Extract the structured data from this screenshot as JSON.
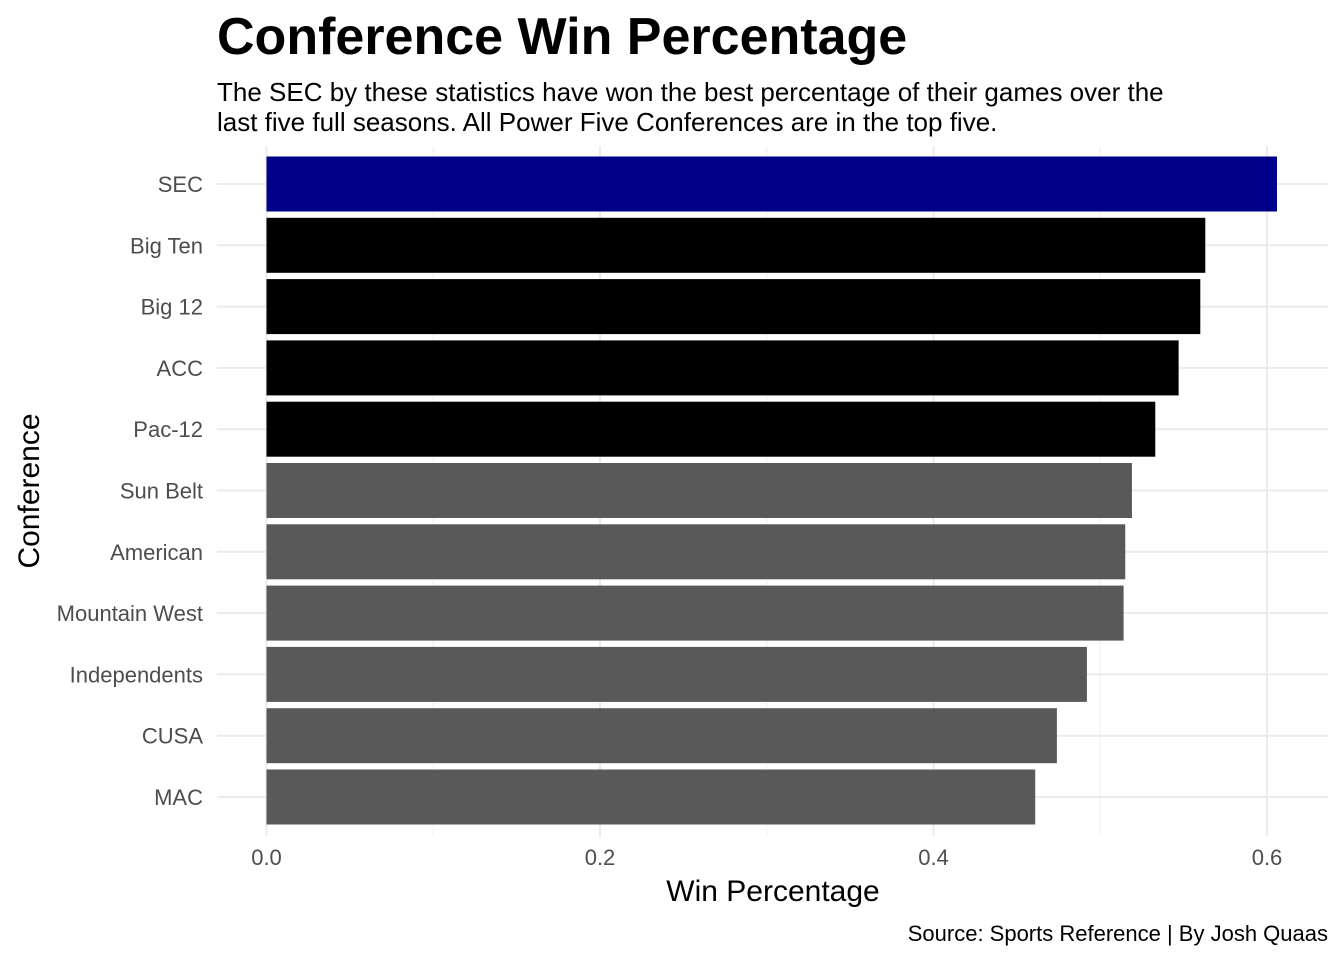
{
  "chart_data": {
    "type": "bar",
    "orientation": "horizontal",
    "title": "Conference Win Percentage",
    "subtitle_lines": [
      "The SEC by these statistics have won the best percentage of their games over the",
      "last five full seasons. All Power Five Conferences are in the top five."
    ],
    "xlabel": "Win Percentage",
    "ylabel": "Conference",
    "caption": "Source: Sports Reference | By Josh Quaas",
    "categories": [
      "SEC",
      "Big Ten",
      "Big 12",
      "ACC",
      "Pac-12",
      "Sun Belt",
      "American",
      "Mountain West",
      "Independents",
      "CUSA",
      "MAC"
    ],
    "values": [
      0.606,
      0.563,
      0.56,
      0.547,
      0.533,
      0.519,
      0.515,
      0.514,
      0.492,
      0.474,
      0.461
    ],
    "colors": [
      "#00008b",
      "#000000",
      "#000000",
      "#000000",
      "#000000",
      "#595959",
      "#595959",
      "#595959",
      "#595959",
      "#595959",
      "#595959"
    ],
    "xlim": [
      0,
      0.63
    ],
    "x_ticks": [
      0.0,
      0.2,
      0.4,
      0.6
    ],
    "x_tick_labels": [
      "0.0",
      "0.2",
      "0.4",
      "0.6"
    ],
    "grid": true,
    "theme": "minimal"
  }
}
